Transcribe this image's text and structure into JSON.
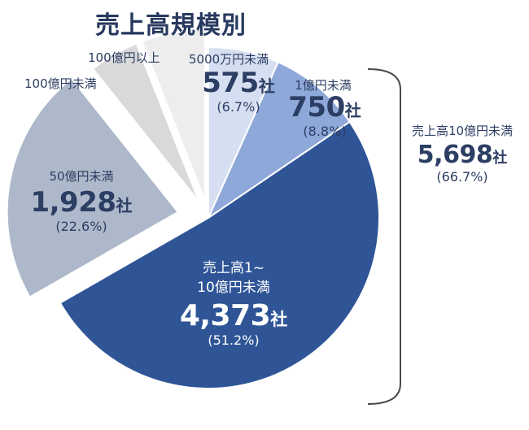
{
  "title": "売上高規模別",
  "chart_data": {
    "type": "pie",
    "title": "売上高規模別",
    "slices": [
      {
        "label": "5000万円未満",
        "count": "575",
        "unit": "社",
        "percent": "6.7%",
        "value": 6.7,
        "color": "#d6dff2"
      },
      {
        "label": "1億円未満",
        "count": "750",
        "unit": "社",
        "percent": "8.8%",
        "value": 8.8,
        "color": "#8fa8da"
      },
      {
        "label": "売上高1~10億円未満",
        "count": "4,373",
        "unit": "社",
        "percent": "51.2%",
        "value": 51.2,
        "color": "#2f5597"
      },
      {
        "label": "50億円未満",
        "count": "1,928",
        "unit": "社",
        "percent": "22.6%",
        "value": 22.6,
        "color": "#adb9ca"
      },
      {
        "label": "100億円未満",
        "percent": "",
        "value": 4.7,
        "color": "#d9d9d9"
      },
      {
        "label": "100億円以上",
        "percent": "",
        "value": 6.0,
        "color": "#ededed"
      }
    ],
    "bracket": {
      "label": "売上高10億円未満",
      "count": "5,698",
      "unit": "社",
      "percent": "66.7%"
    }
  },
  "labels": {
    "s0": {
      "cat": "5000万円未満",
      "count": "575",
      "unit": "社",
      "pct": "(6.7%)"
    },
    "s1": {
      "cat": "1億円未満",
      "count": "750",
      "unit": "社",
      "pct": "(8.8%)"
    },
    "s2": {
      "cat1": "売上高1~",
      "cat2": "10億円未満",
      "count": "4,373",
      "unit": "社",
      "pct": "(51.2%)"
    },
    "s3": {
      "cat": "50億円未満",
      "count": "1,928",
      "unit": "社",
      "pct": "(22.6%)"
    },
    "s4": {
      "cat": "100億円未満"
    },
    "s5": {
      "cat": "100億円以上"
    },
    "bracket": {
      "cat": "売上高10億円未満",
      "count": "5,698",
      "unit": "社",
      "pct": "(66.7%)"
    }
  }
}
